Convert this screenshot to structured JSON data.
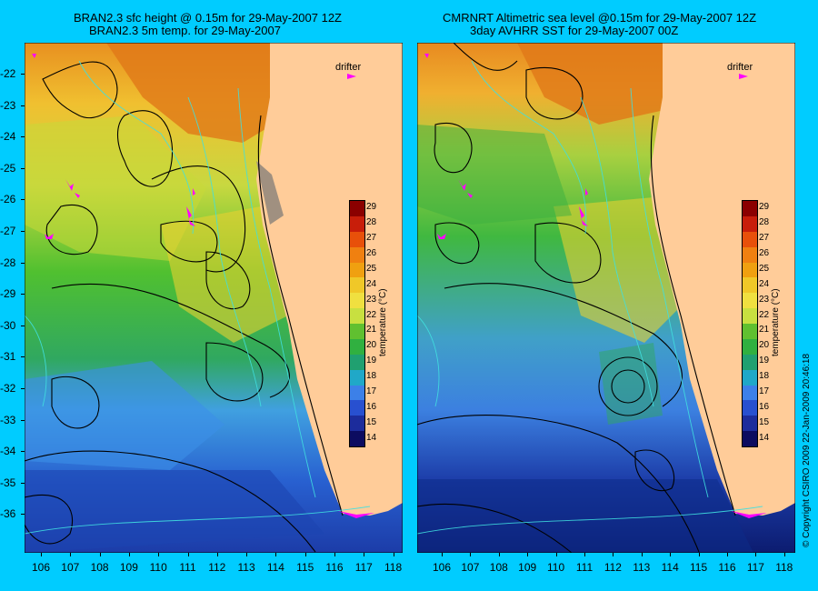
{
  "left_panel": {
    "title_line1": "BRAN2.3 sfc height @ 0.15m for 29-May-2007 12Z",
    "title_line2": "BRAN2.3 5m temp. for 29-May-2007",
    "drifter_label": "drifter"
  },
  "right_panel": {
    "title_line1": "CMRNRT Altimetric sea level  @0.15m  for 29-May-2007 12Z",
    "title_line2": "3day AVHRR SST for 29-May-2007 00Z",
    "drifter_label": "drifter"
  },
  "axes": {
    "lat_ticks": [
      "-22",
      "-23",
      "-24",
      "-25",
      "-26",
      "-27",
      "-28",
      "-29",
      "-30",
      "-31",
      "-32",
      "-33",
      "-34",
      "-35",
      "-36"
    ],
    "lon_ticks": [
      "106",
      "107",
      "108",
      "109",
      "110",
      "111",
      "112",
      "113",
      "114",
      "115",
      "116",
      "117",
      "118"
    ]
  },
  "colorbar": {
    "title": "temperature (°C)",
    "labels": [
      "29",
      "28",
      "27",
      "26",
      "25",
      "24",
      "23",
      "22",
      "21",
      "20",
      "19",
      "18",
      "17",
      "16",
      "15",
      "14"
    ],
    "colors": [
      "#8b0000",
      "#c81e0a",
      "#e8500a",
      "#f08010",
      "#f0a010",
      "#f0c828",
      "#f0e040",
      "#c8e040",
      "#60c030",
      "#30b040",
      "#20a070",
      "#20a8c8",
      "#3c80e8",
      "#2850d0",
      "#1c2c9c",
      "#0c0c60"
    ]
  },
  "copyright": "© Copyright CSIRO 2009   22-Jan-2009 20:46:18"
}
